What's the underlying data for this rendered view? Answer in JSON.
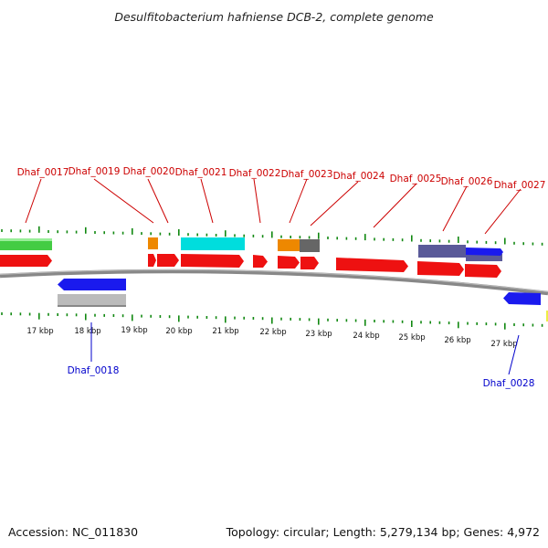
{
  "title": "Desulfitobacterium hafniense DCB-2, complete genome",
  "footer": {
    "accession": "Accession: NC_011830",
    "summary": "Topology: circular; Length: 5,279,134 bp; Genes: 4,972"
  },
  "colors": {
    "forward_cds": "#ee1111",
    "reverse_cds": "#1a1aee",
    "label_top": "#cc0000",
    "label_bottom": "#0000cc",
    "ticks": "#118811",
    "backbone": "#888888",
    "green_feature": "#44cc44",
    "orange_feature": "#ee8800",
    "cyan_feature": "#00dddd",
    "gray_feature": "#666666",
    "purple_feature": "#5a5a99",
    "silver_feature": "#bbbbbb"
  },
  "kbp_labels": [
    "17 kbp",
    "18 kbp",
    "19 kbp",
    "20 kbp",
    "21 kbp",
    "22 kbp",
    "23 kbp",
    "24 kbp",
    "25 kbp",
    "26 kbp",
    "27 kbp"
  ],
  "genes_top": [
    "Dhaf_0017",
    "Dhaf_0019",
    "Dhaf_0020",
    "Dhaf_0021",
    "Dhaf_0022",
    "Dhaf_0023",
    "Dhaf_0024",
    "Dhaf_0025",
    "Dhaf_0026",
    "Dhaf_0027"
  ],
  "genes_bottom": [
    "Dhaf_0018",
    "Dhaf_0028"
  ]
}
